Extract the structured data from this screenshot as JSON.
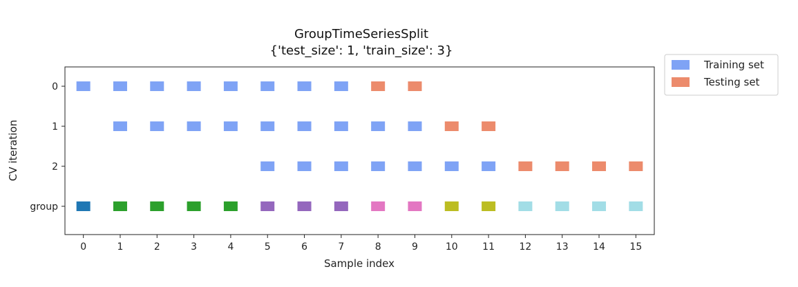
{
  "chart_data": {
    "type": "scatter",
    "title": "GroupTimeSeriesSplit",
    "subtitle": "{'test_size': 1, 'train_size': 3}",
    "xlabel": "Sample index",
    "ylabel": "CV iteration",
    "xlim": [
      -0.5,
      15.5
    ],
    "x_ticks": [
      0,
      1,
      2,
      3,
      4,
      5,
      6,
      7,
      8,
      9,
      10,
      11,
      12,
      13,
      14,
      15
    ],
    "y_ticks": [
      "0",
      "1",
      "2",
      "group"
    ],
    "grid": false,
    "legend": {
      "position": "outside-top-right",
      "entries": [
        {
          "label": "Training set",
          "color": "#7fa3f5"
        },
        {
          "label": "Testing set",
          "color": "#ec8b6c"
        }
      ]
    },
    "colors": {
      "train": "#7fa3f5",
      "test": "#ec8b6c"
    },
    "rows": [
      {
        "label": "0",
        "train": [
          0,
          1,
          2,
          3,
          4,
          5,
          6,
          7
        ],
        "test": [
          8,
          9
        ]
      },
      {
        "label": "1",
        "train": [
          1,
          2,
          3,
          4,
          5,
          6,
          7,
          8,
          9
        ],
        "test": [
          10,
          11
        ]
      },
      {
        "label": "2",
        "train": [
          5,
          6,
          7,
          8,
          9,
          10,
          11
        ],
        "test": [
          12,
          13,
          14,
          15
        ]
      }
    ],
    "groups": {
      "label": "group",
      "values": [
        0,
        1,
        1,
        1,
        1,
        2,
        2,
        2,
        3,
        3,
        4,
        4,
        5,
        5,
        5,
        5
      ],
      "colors": [
        "#1f77b4",
        "#2ca02c",
        "#9467bd",
        "#e377c2",
        "#bcbd22",
        "#a2dde6"
      ]
    }
  }
}
